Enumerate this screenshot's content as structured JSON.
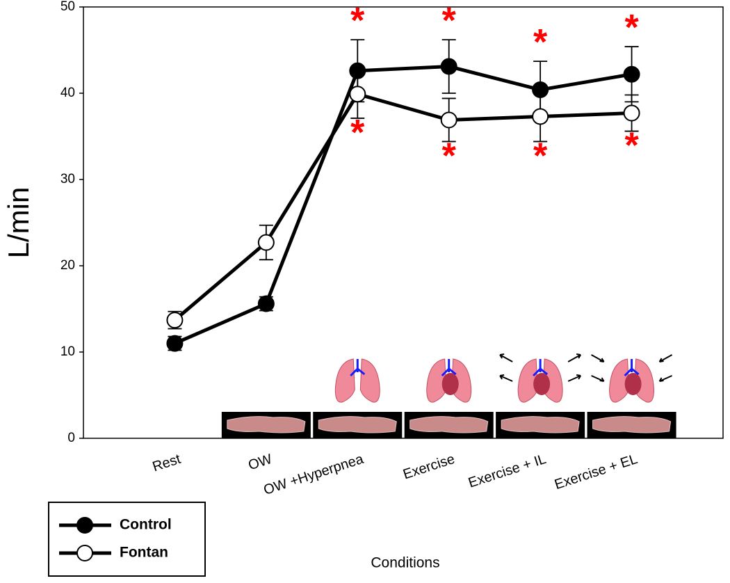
{
  "chart_data": {
    "type": "line",
    "x_label": "Conditions",
    "y_label": "L/min",
    "categories": [
      "Rest",
      "OW",
      "OW +Hyperpnea",
      "Exercise",
      "Exercise + IL",
      "Exercise + EL"
    ],
    "series": [
      {
        "name": "Control",
        "color": "#000000",
        "marker": "filled",
        "values": [
          11.0,
          15.6,
          42.6,
          43.1,
          40.4,
          42.2
        ],
        "errors": [
          0.8,
          0.8,
          3.6,
          3.1,
          3.3,
          3.2
        ],
        "significance": [
          null,
          null,
          "*",
          "*",
          "*",
          "*"
        ]
      },
      {
        "name": "Fontan",
        "color": "#000000",
        "marker": "open",
        "values": [
          13.7,
          22.7,
          39.9,
          36.9,
          37.3,
          37.7
        ],
        "errors": [
          1.0,
          2.0,
          2.8,
          2.5,
          2.9,
          2.1
        ],
        "significance": [
          null,
          null,
          "*",
          "*",
          "*",
          "*"
        ]
      }
    ],
    "ylim": [
      0,
      50
    ],
    "yticks": [
      0,
      10,
      20,
      30,
      40,
      50
    ],
    "significance_color": "#ff0000",
    "legend": "bottom-left",
    "grid": false
  }
}
